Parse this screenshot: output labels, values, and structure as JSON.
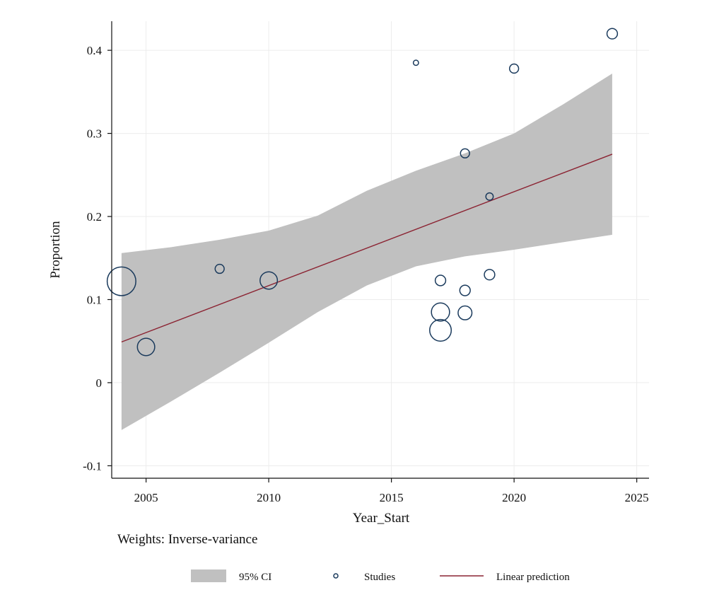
{
  "chart_data": {
    "type": "scatter",
    "xlabel": "Year_Start",
    "ylabel": "Proportion",
    "xlim": [
      2003.6,
      2025.5
    ],
    "ylim": [
      -0.115,
      0.435
    ],
    "xticks": [
      2005,
      2010,
      2015,
      2020,
      2025
    ],
    "xtick_labels": [
      "2005",
      "2010",
      "2015",
      "2020",
      "2025"
    ],
    "yticks": [
      -0.1,
      0,
      0.1,
      0.2,
      0.3,
      0.4
    ],
    "ytick_labels": [
      "-0.1",
      "0",
      "0.1",
      "0.2",
      "0.3",
      "0.4"
    ],
    "grid": true,
    "note": "Weights: Inverse-variance",
    "colors": {
      "ci_band": "#c0c0c0",
      "studies": "#1a3a5c",
      "line": "#8b2332"
    },
    "series": [
      {
        "name": "Studies",
        "kind": "scatter",
        "points": [
          {
            "x": 2004,
            "y": 0.122,
            "weight": 30
          },
          {
            "x": 2005,
            "y": 0.043,
            "weight": 11
          },
          {
            "x": 2008,
            "y": 0.137,
            "weight": 3
          },
          {
            "x": 2010,
            "y": 0.123,
            "weight": 11
          },
          {
            "x": 2016,
            "y": 0.385,
            "weight": 1
          },
          {
            "x": 2017,
            "y": 0.123,
            "weight": 4
          },
          {
            "x": 2017,
            "y": 0.085,
            "weight": 12
          },
          {
            "x": 2017,
            "y": 0.063,
            "weight": 17
          },
          {
            "x": 2018,
            "y": 0.276,
            "weight": 3
          },
          {
            "x": 2018,
            "y": 0.111,
            "weight": 4
          },
          {
            "x": 2018,
            "y": 0.084,
            "weight": 7
          },
          {
            "x": 2019,
            "y": 0.224,
            "weight": 2
          },
          {
            "x": 2019,
            "y": 0.13,
            "weight": 4
          },
          {
            "x": 2020,
            "y": 0.378,
            "weight": 3
          },
          {
            "x": 2024,
            "y": 0.42,
            "weight": 4
          }
        ]
      },
      {
        "name": "Linear prediction",
        "kind": "line",
        "x": [
          2004,
          2024
        ],
        "y": [
          0.049,
          0.275
        ]
      },
      {
        "name": "95% CI",
        "kind": "band",
        "x": [
          2004,
          2006,
          2008,
          2010,
          2012,
          2014,
          2016,
          2018,
          2020,
          2022,
          2024
        ],
        "lower": [
          -0.057,
          -0.023,
          0.012,
          0.048,
          0.085,
          0.117,
          0.14,
          0.152,
          0.16,
          0.169,
          0.178
        ],
        "upper": [
          0.156,
          0.163,
          0.172,
          0.183,
          0.201,
          0.231,
          0.255,
          0.276,
          0.3,
          0.335,
          0.372
        ]
      }
    ],
    "legend": [
      {
        "label": "95% CI",
        "kind": "band"
      },
      {
        "label": "Studies",
        "kind": "marker"
      },
      {
        "label": "Linear prediction",
        "kind": "line"
      }
    ]
  }
}
